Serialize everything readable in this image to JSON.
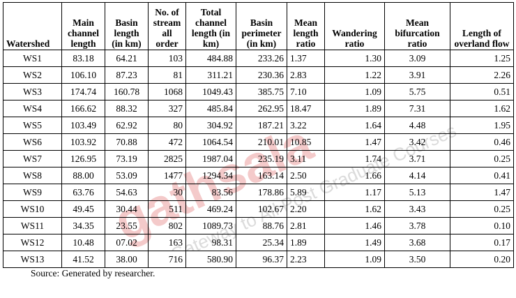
{
  "table": {
    "headers": [
      "Watershed",
      "Main channel length",
      "Basin length (in km)",
      "No. of stream all order",
      "Total channel length (in km)",
      "Basin perimeter (in km)",
      "Mean length ratio",
      "Wandering ratio",
      "Mean bifurcation ratio",
      "Length of overland flow"
    ],
    "rows": [
      [
        "WS1",
        "83.18",
        "64.21",
        "103",
        "484.88",
        "233.26",
        "1.37",
        "1.30",
        "3.09",
        "1.25"
      ],
      [
        "WS2",
        "106.10",
        "87.23",
        "81",
        "311.21",
        "230.36",
        "2.83",
        "1.22",
        "3.91",
        "2.26"
      ],
      [
        "WS3",
        "174.74",
        "160.78",
        "1068",
        "1049.43",
        "385.75",
        "7.10",
        "1.09",
        "5.75",
        "0.51"
      ],
      [
        "WS4",
        "166.62",
        "88.32",
        "327",
        "485.84",
        "262.95",
        "18.47",
        "1.89",
        "7.31",
        "1.62"
      ],
      [
        "WS5",
        "103.49",
        "62.92",
        "80",
        "304.92",
        "187.21",
        "3.22",
        "1.64",
        "4.48",
        "1.95"
      ],
      [
        "WS6",
        "103.92",
        "70.88",
        "472",
        "1064.54",
        "210.01",
        "10.85",
        "1.47",
        "3.42",
        "0.46"
      ],
      [
        "WS7",
        "126.95",
        "73.19",
        "2825",
        "1987.04",
        "235.19",
        "3.11",
        "1.74",
        "3.71",
        "0.25"
      ],
      [
        "WS8",
        "88.00",
        "53.09",
        "1477",
        "1294.34",
        "163.14",
        "2.50",
        "1.66",
        "4.14",
        "0.41"
      ],
      [
        "WS9",
        "63.76",
        "54.63",
        "30",
        "83.56",
        "178.86",
        "5.89",
        "1.17",
        "5.13",
        "1.47"
      ],
      [
        "WS10",
        "49.45",
        "30.44",
        "511",
        "469.24",
        "102.67",
        "2.20",
        "1.62",
        "3.43",
        "0.25"
      ],
      [
        "WS11",
        "34.35",
        "23.55",
        "802",
        "1089.73",
        "88.76",
        "2.81",
        "1.46",
        "3.78",
        "0.10"
      ],
      [
        "WS12",
        "10.48",
        "07.02",
        "163",
        "98.31",
        "25.34",
        "1.89",
        "1.49",
        "3.68",
        "0.17"
      ],
      [
        "WS13",
        "41.52",
        "38.00",
        "716",
        "580.90",
        "96.37",
        "2.23",
        "1.09",
        "3.50",
        "0.20"
      ]
    ]
  },
  "source_note": "Source: Generated by researcher.",
  "watermark": {
    "brand": "gathsala",
    "tagline": "A Gateway to All Post Graduate Courses",
    "color": "#e8a3a3",
    "icon": "watermark-logo-icon"
  }
}
